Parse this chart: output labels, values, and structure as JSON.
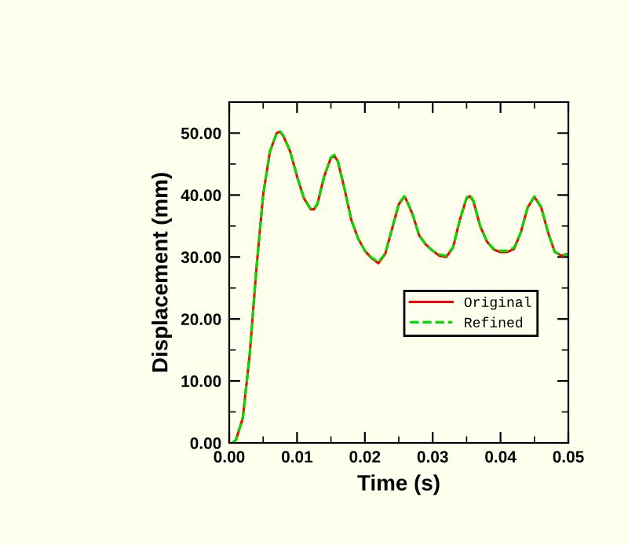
{
  "chart_data": {
    "type": "line",
    "xlabel": "Time (s)",
    "ylabel": "Displacement (mm)",
    "xlim": [
      0,
      0.05
    ],
    "ylim": [
      0,
      55
    ],
    "xticks": [
      {
        "value": 0,
        "label": "0.00"
      },
      {
        "value": 0.01,
        "label": "0.01"
      },
      {
        "value": 0.02,
        "label": "0.02"
      },
      {
        "value": 0.03,
        "label": "0.03"
      },
      {
        "value": 0.04,
        "label": "0.04"
      },
      {
        "value": 0.05,
        "label": "0.05"
      }
    ],
    "yticks": [
      {
        "value": 0,
        "label": "0.00"
      },
      {
        "value": 10,
        "label": "10.00"
      },
      {
        "value": 20,
        "label": "20.00"
      },
      {
        "value": 30,
        "label": "30.00"
      },
      {
        "value": 40,
        "label": "40.00"
      },
      {
        "value": 50,
        "label": "50.00"
      }
    ],
    "grid": false,
    "legend": "right",
    "series": [
      {
        "name": "Original",
        "color": "#ff0000",
        "line_style": "solid",
        "x": [
          0.0005,
          0.001,
          0.002,
          0.003,
          0.004,
          0.005,
          0.006,
          0.007,
          0.0075,
          0.008,
          0.009,
          0.01,
          0.011,
          0.012,
          0.0125,
          0.013,
          0.014,
          0.015,
          0.0155,
          0.016,
          0.017,
          0.018,
          0.019,
          0.02,
          0.021,
          0.022,
          0.023,
          0.024,
          0.025,
          0.0258,
          0.026,
          0.027,
          0.028,
          0.029,
          0.03,
          0.031,
          0.032,
          0.033,
          0.034,
          0.035,
          0.0355,
          0.036,
          0.037,
          0.038,
          0.039,
          0.04,
          0.041,
          0.042,
          0.043,
          0.044,
          0.045,
          0.046,
          0.047,
          0.048,
          0.049,
          0.05
        ],
        "values": [
          0,
          0.5,
          4,
          14,
          28,
          40,
          47,
          50,
          50.2,
          49.5,
          47,
          43,
          39.5,
          37.7,
          37.7,
          38.5,
          43,
          46,
          46.3,
          45.5,
          41,
          36,
          33,
          31,
          29.8,
          29,
          30.5,
          34.5,
          38.5,
          39.7,
          39.5,
          37,
          33.5,
          32,
          31,
          30.2,
          30,
          31.5,
          36,
          39.5,
          39.8,
          39,
          35,
          32.5,
          31.2,
          30.8,
          30.8,
          31.3,
          34,
          38,
          39.7,
          38,
          34,
          30.8,
          30.2,
          30.5
        ]
      },
      {
        "name": "Refined",
        "color": "#00dd00",
        "line_style": "dashed",
        "x": [
          0.0005,
          0.001,
          0.002,
          0.003,
          0.004,
          0.005,
          0.006,
          0.007,
          0.0075,
          0.008,
          0.009,
          0.01,
          0.011,
          0.012,
          0.0125,
          0.013,
          0.014,
          0.015,
          0.0155,
          0.016,
          0.017,
          0.018,
          0.019,
          0.02,
          0.021,
          0.022,
          0.023,
          0.024,
          0.025,
          0.0258,
          0.026,
          0.027,
          0.028,
          0.029,
          0.03,
          0.031,
          0.032,
          0.033,
          0.034,
          0.035,
          0.0355,
          0.036,
          0.037,
          0.038,
          0.039,
          0.04,
          0.041,
          0.042,
          0.043,
          0.044,
          0.045,
          0.046,
          0.047,
          0.048,
          0.049,
          0.05
        ],
        "values": [
          0,
          0.5,
          4,
          14,
          28,
          40,
          47,
          50,
          50.3,
          49.6,
          47,
          43,
          39.6,
          37.8,
          37.8,
          38.6,
          43,
          46.1,
          46.5,
          45.6,
          41,
          36,
          33,
          31,
          29.9,
          29.2,
          30.6,
          34.6,
          38.6,
          39.8,
          39.6,
          37,
          33.5,
          32,
          31,
          30.4,
          30.2,
          31.6,
          36,
          39.6,
          40,
          39.1,
          35,
          32.5,
          31.3,
          31,
          31,
          31.5,
          34,
          38,
          39.8,
          38.1,
          34,
          30.8,
          30.3,
          30.5
        ]
      }
    ]
  }
}
